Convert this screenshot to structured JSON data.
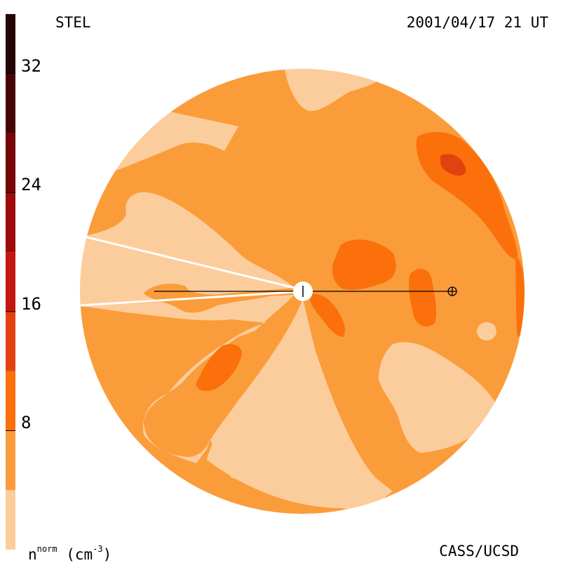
{
  "header": {
    "source_label": "STEL",
    "timestamp": "2001/04/17 21 UT"
  },
  "footer": {
    "credit": "CASS/UCSD",
    "units_prefix": "n",
    "units_sup": "norm",
    "units_suffix": " (cm",
    "units_exp": "-3",
    "units_close": ")"
  },
  "chart_data": {
    "type": "heatmap",
    "title": "",
    "quantity_label": "nnorm (cm-3)",
    "colorbar": {
      "range": [
        0,
        36
      ],
      "ticks": [
        "8",
        "16",
        "24",
        "32"
      ],
      "tick_values": [
        8,
        16,
        24,
        32
      ],
      "levels": [
        {
          "from": 0,
          "to": 4,
          "color": "#fccd9c"
        },
        {
          "from": 4,
          "to": 8,
          "color": "#fb9c3a"
        },
        {
          "from": 8,
          "to": 12,
          "color": "#fb700b"
        },
        {
          "from": 12,
          "to": 16,
          "color": "#e2420e"
        },
        {
          "from": 16,
          "to": 20,
          "color": "#c51712"
        },
        {
          "from": 20,
          "to": 24,
          "color": "#9f0a0a"
        },
        {
          "from": 24,
          "to": 28,
          "color": "#760707"
        },
        {
          "from": 28,
          "to": 32,
          "color": "#470606"
        },
        {
          "from": 32,
          "to": 36,
          "color": "#240505"
        }
      ]
    },
    "markers": [
      {
        "name": "Sun",
        "symbol": "circle-tick"
      },
      {
        "name": "Earth",
        "symbol": "circled-plus"
      }
    ],
    "grid": false
  }
}
